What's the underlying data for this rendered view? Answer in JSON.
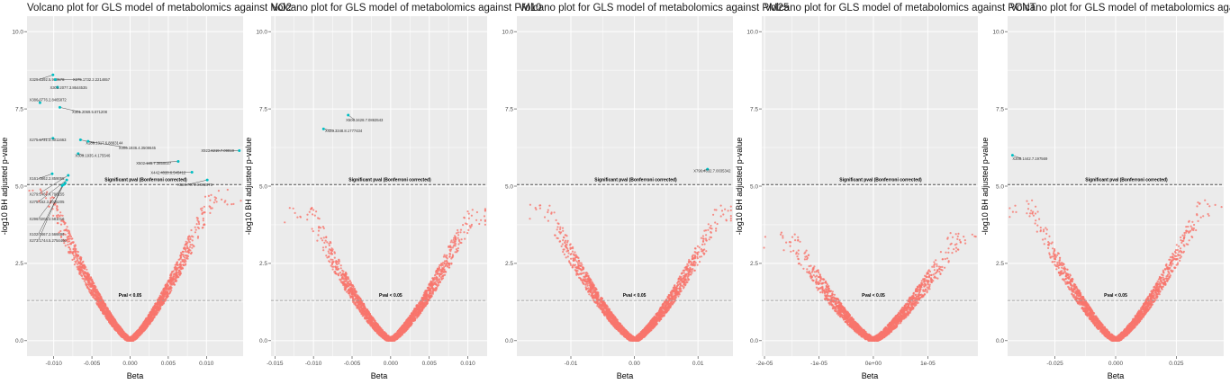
{
  "chart_data": [
    {
      "type": "scatter",
      "title": "Volcano plot for GLS model of metabolomics against NO2",
      "xlabel": "Beta",
      "ylabel": "-log10 BH adjusted p-value",
      "xlim": [
        -0.0135,
        0.0148
      ],
      "ylim": [
        -0.5,
        10.5
      ],
      "xticks": [
        -0.01,
        -0.005,
        0,
        0.005,
        0.01
      ],
      "xtick_labels": [
        "-0.010",
        "-0.005",
        "0.000",
        "0.005",
        "0.010"
      ],
      "yticks": [
        0,
        2.5,
        5,
        7.5,
        10
      ],
      "ytick_labels": [
        "0.0",
        "2.5",
        "5.0",
        "7.5",
        "10.0"
      ],
      "sig_threshold": 5.05,
      "sig_label": "Significant pval (Bonferroni corrected)",
      "p05_threshold": 1.3,
      "p05_label": "Pval < 0.05",
      "cloud": {
        "count": 2600,
        "xspread": 0.0125,
        "ymax": 4.9,
        "seed": 11
      },
      "significant": [
        {
          "x": -0.0101,
          "y": 8.6,
          "label": "X329.2392.5.960578",
          "lx": -0.0132,
          "ly": 8.4
        },
        {
          "x": -0.0098,
          "y": 8.45,
          "label": "X275.1732.2.2214657",
          "lx": -0.0075,
          "ly": 8.4
        },
        {
          "x": -0.0095,
          "y": 8.2,
          "label": "X301.2077.3.8644535",
          "lx": -0.0105,
          "ly": 8.15
        },
        {
          "x": -0.0118,
          "y": 7.7,
          "label": "X386.0776.2.8465872",
          "lx": -0.0132,
          "ly": 7.75
        },
        {
          "x": -0.0092,
          "y": 7.55,
          "label": "X301.2069.5.671208",
          "lx": -0.0076,
          "ly": 7.35
        },
        {
          "x": -0.0101,
          "y": 6.55,
          "label": "X275.1731.2.4011663",
          "lx": -0.0132,
          "ly": 6.45
        },
        {
          "x": -0.0065,
          "y": 6.5,
          "label": "X289.1317.6.8883144",
          "lx": -0.0058,
          "ly": 6.35
        },
        {
          "x": -0.0055,
          "y": 6.45,
          "label": "X306.1936.4.3508645",
          "lx": -0.0015,
          "ly": 6.2
        },
        {
          "x": -0.0068,
          "y": 6.05,
          "label": "X309.1935.4.175546",
          "lx": -0.0072,
          "ly": 5.95
        },
        {
          "x": 0.0143,
          "y": 6.15,
          "label": "X923.6219.7.09019",
          "lx": 0.0093,
          "ly": 6.1
        },
        {
          "x": 0.0063,
          "y": 5.8,
          "label": "X502.165.7.3850027",
          "lx": 0.0008,
          "ly": 5.7
        },
        {
          "x": 0.0081,
          "y": 5.45,
          "label": "X442.4028.6.545412",
          "lx": 0.0027,
          "ly": 5.4
        },
        {
          "x": 0.0101,
          "y": 5.2,
          "label": "X526.7674.6.062075",
          "lx": 0.0062,
          "ly": 5.0
        },
        {
          "x": -0.0102,
          "y": 5.4,
          "label": "X161.0862.2.859055",
          "lx": -0.0132,
          "ly": 5.2
        },
        {
          "x": -0.0081,
          "y": 5.35,
          "label": "X279.1467.4.790155",
          "lx": -0.0132,
          "ly": 4.7
        },
        {
          "x": -0.0083,
          "y": 5.2,
          "label": "X275.162.3.4035205",
          "lx": -0.0132,
          "ly": 4.45
        },
        {
          "x": -0.0085,
          "y": 5.1,
          "label": "X296.0202.2.581016",
          "lx": -0.0132,
          "ly": 3.9
        },
        {
          "x": -0.0087,
          "y": 5.05,
          "label": "X102.0467.2.566696",
          "lx": -0.0132,
          "ly": 3.4
        },
        {
          "x": -0.0089,
          "y": 5.02,
          "label": "X273.1744.5.2754466",
          "lx": -0.0132,
          "ly": 3.2
        }
      ]
    },
    {
      "type": "scatter",
      "title": "Volcano plot for GLS model of metabolomics against PM10",
      "xlabel": "Beta",
      "ylabel": "-log10 BH adjusted p-value",
      "xlim": [
        -0.0155,
        0.0125
      ],
      "ylim": [
        -0.5,
        10.5
      ],
      "xticks": [
        -0.015,
        -0.01,
        -0.005,
        0,
        0.005,
        0.01
      ],
      "xtick_labels": [
        "-0.015",
        "-0.010",
        "-0.005",
        "0.000",
        "0.005",
        "0.010"
      ],
      "yticks": [
        0,
        2.5,
        5,
        7.5,
        10
      ],
      "ytick_labels": [
        "0.0",
        "2.5",
        "5.0",
        "7.5",
        "10.0"
      ],
      "sig_threshold": 5.05,
      "sig_label": "Significant pval (Bonferroni corrected)",
      "p05_threshold": 1.3,
      "p05_label": "Pval < 0.05",
      "cloud": {
        "count": 2300,
        "xspread": 0.0122,
        "ymax": 4.3,
        "seed": 23
      },
      "significant": [
        {
          "x": -0.0055,
          "y": 7.3,
          "label": "X506.3428.7.0863543",
          "lx": -0.0058,
          "ly": 7.1
        },
        {
          "x": -0.0087,
          "y": 6.85,
          "label": "X423.3348.8.1777434",
          "lx": -0.0085,
          "ly": 6.75
        }
      ]
    },
    {
      "type": "scatter",
      "title": "Volcano plot for GLS model of metabolomics against PM25",
      "xlabel": "Beta",
      "ylabel": "",
      "xlim": [
        -0.0185,
        0.0155
      ],
      "ylim": [
        -0.5,
        10.5
      ],
      "xticks": [
        -0.01,
        0,
        0.01
      ],
      "xtick_labels": [
        "-0.01",
        "0.00",
        "0.01"
      ],
      "yticks": [
        0,
        2.5,
        5,
        7.5,
        10
      ],
      "ytick_labels": [
        "0.0",
        "2.5",
        "5.0",
        "7.5",
        "10.0"
      ],
      "sig_threshold": 5.05,
      "sig_label": "Significant pval (Bonferroni corrected)",
      "p05_threshold": 1.3,
      "p05_label": "Pval < 0.05",
      "cloud": {
        "count": 2300,
        "xspread": 0.016,
        "ymax": 4.4,
        "seed": 37
      },
      "significant": [
        {
          "x": 0.0115,
          "y": 5.55,
          "label": "X796.4632.7.0035342",
          "lx": 0.0093,
          "ly": 5.45
        }
      ]
    },
    {
      "type": "scatter",
      "title": "Volcano plot for GLS model of metabolomics against PCNT",
      "xlabel": "Beta",
      "ylabel": "-log10 BH adjusted p-value",
      "xlim": [
        -2.05e-05,
        1.92e-05
      ],
      "ylim": [
        -0.5,
        10.5
      ],
      "xticks": [
        -2e-05,
        -1e-05,
        0,
        1e-05
      ],
      "xtick_labels": [
        "-2e-05",
        "-1e-05",
        "0e+00",
        "1e-05"
      ],
      "yticks": [
        0,
        2.5,
        5,
        7.5,
        10
      ],
      "ytick_labels": [
        "0.0",
        "2.5",
        "5.0",
        "7.5",
        "10.0"
      ],
      "sig_threshold": 5.05,
      "sig_label": "Significant pval (Bonferroni corrected)",
      "p05_threshold": 1.3,
      "p05_label": "Pval < 0.05",
      "cloud": {
        "count": 2000,
        "xspread": 1.8e-05,
        "ymax": 3.5,
        "seed": 41
      },
      "significant": []
    },
    {
      "type": "scatter",
      "title": "Volcano plot for GLS model of metabolomics against CBLK",
      "xlabel": "Beta",
      "ylabel": "-log10 BH adjusted p-value",
      "xlim": [
        -0.0445,
        0.0445
      ],
      "ylim": [
        -0.5,
        10.5
      ],
      "xticks": [
        -0.025,
        0,
        0.025
      ],
      "xtick_labels": [
        "-0.025",
        "0.000",
        "0.025"
      ],
      "yticks": [
        0,
        2.5,
        5,
        7.5,
        10
      ],
      "ytick_labels": [
        "0.0",
        "2.5",
        "5.0",
        "7.5",
        "10.0"
      ],
      "sig_threshold": 5.05,
      "sig_label": "Significant pval (Bonferroni corrected)",
      "p05_threshold": 1.3,
      "p05_label": "Pval < 0.05",
      "cloud": {
        "count": 2100,
        "xspread": 0.042,
        "ymax": 4.6,
        "seed": 53
      },
      "significant": [
        {
          "x": -0.0425,
          "y": 6.0,
          "label": "X308.1442.7.197569",
          "lx": -0.0425,
          "ly": 5.85
        }
      ]
    }
  ],
  "colors": {
    "point": "#f8766d",
    "significant": "#00bfc4",
    "panel_bg": "#ebebeb",
    "grid": "#ffffff",
    "ref_line": "#555555"
  }
}
